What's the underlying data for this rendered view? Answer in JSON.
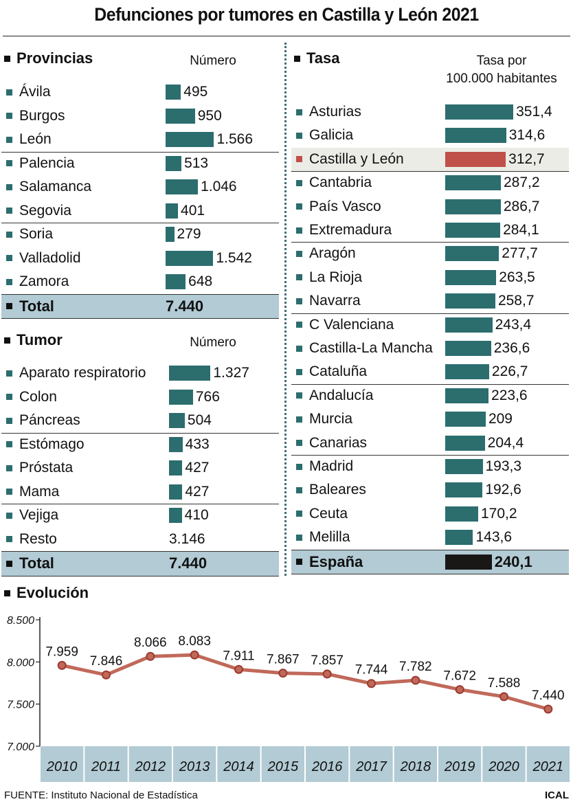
{
  "title": "Defunciones por tumores en Castilla y León 2021",
  "provincias": {
    "heading": "Provincias",
    "column": "Número",
    "rows": [
      {
        "label": "Ávila",
        "value": "495",
        "num": 495
      },
      {
        "label": "Burgos",
        "value": "950",
        "num": 950
      },
      {
        "label": "León",
        "value": "1.566",
        "num": 1566
      },
      {
        "label": "Palencia",
        "value": "513",
        "num": 513
      },
      {
        "label": "Salamanca",
        "value": "1.046",
        "num": 1046
      },
      {
        "label": "Segovia",
        "value": "401",
        "num": 401
      },
      {
        "label": "Soria",
        "value": "279",
        "num": 279
      },
      {
        "label": "Valladolid",
        "value": "1.542",
        "num": 1542
      },
      {
        "label": "Zamora",
        "value": "648",
        "num": 648
      }
    ],
    "total_label": "Total",
    "total_value": "7.440"
  },
  "tumor": {
    "heading": "Tumor",
    "column": "Número",
    "rows": [
      {
        "label": "Aparato respiratorio",
        "value": "1.327",
        "num": 1327
      },
      {
        "label": "Colon",
        "value": "766",
        "num": 766
      },
      {
        "label": "Páncreas",
        "value": "504",
        "num": 504
      },
      {
        "label": "Estómago",
        "value": "433",
        "num": 433
      },
      {
        "label": "Próstata",
        "value": "427",
        "num": 427
      },
      {
        "label": "Mama",
        "value": "427",
        "num": 427
      },
      {
        "label": "Vejiga",
        "value": "410",
        "num": 410
      },
      {
        "label": "Resto",
        "value": "3.146",
        "num": 3146
      }
    ],
    "total_label": "Total",
    "total_value": "7.440"
  },
  "tasa": {
    "heading": "Tasa",
    "column_line1": "Tasa por",
    "column_line2": "100.000 habitantes",
    "rows": [
      {
        "label": "Asturias",
        "value": "351,4",
        "num": 351.4
      },
      {
        "label": "Galicia",
        "value": "314,6",
        "num": 314.6
      },
      {
        "label": "Castilla y León",
        "value": "312,7",
        "num": 312.7
      },
      {
        "label": "Cantabria",
        "value": "287,2",
        "num": 287.2
      },
      {
        "label": "País Vasco",
        "value": "286,7",
        "num": 286.7
      },
      {
        "label": "Extremadura",
        "value": "284,1",
        "num": 284.1
      },
      {
        "label": "Aragón",
        "value": "277,7",
        "num": 277.7
      },
      {
        "label": "La Rioja",
        "value": "263,5",
        "num": 263.5
      },
      {
        "label": "Navarra",
        "value": "258,7",
        "num": 258.7
      },
      {
        "label": "C Valenciana",
        "value": "243,4",
        "num": 243.4
      },
      {
        "label": "Castilla-La Mancha",
        "value": "236,6",
        "num": 236.6
      },
      {
        "label": "Cataluña",
        "value": "226,7",
        "num": 226.7
      },
      {
        "label": "Andalucía",
        "value": "223,6",
        "num": 223.6
      },
      {
        "label": "Murcia",
        "value": "209",
        "num": 209
      },
      {
        "label": "Canarias",
        "value": "204,4",
        "num": 204.4
      },
      {
        "label": "Madrid",
        "value": "193,3",
        "num": 193.3
      },
      {
        "label": "Baleares",
        "value": "192,6",
        "num": 192.6
      },
      {
        "label": "Ceuta",
        "value": "170,2",
        "num": 170.2
      },
      {
        "label": "Melilla",
        "value": "143,6",
        "num": 143.6
      }
    ],
    "total_label": "España",
    "total_value": "240,1",
    "total_num": 240.1
  },
  "colors": {
    "bar": "#2c6d6e",
    "highlight_bar": "#c0504a",
    "spain_bar": "#1a1717",
    "line": "#c0695a",
    "marker": "#9c3a2e",
    "band": "#b2cbd4"
  },
  "evolucion": {
    "heading": "Evolución"
  },
  "chart_data": [
    {
      "type": "bar",
      "title": "Provincias",
      "categories": [
        "Ávila",
        "Burgos",
        "León",
        "Palencia",
        "Salamanca",
        "Segovia",
        "Soria",
        "Valladolid",
        "Zamora"
      ],
      "values": [
        495,
        950,
        1566,
        513,
        1046,
        401,
        279,
        1542,
        648
      ]
    },
    {
      "type": "bar",
      "title": "Tumor",
      "categories": [
        "Aparato respiratorio",
        "Colon",
        "Páncreas",
        "Estómago",
        "Próstata",
        "Mama",
        "Vejiga",
        "Resto"
      ],
      "values": [
        1327,
        766,
        504,
        433,
        427,
        427,
        410,
        3146
      ]
    },
    {
      "type": "bar",
      "title": "Tasa",
      "categories": [
        "Asturias",
        "Galicia",
        "Castilla y León",
        "Cantabria",
        "País Vasco",
        "Extremadura",
        "Aragón",
        "La Rioja",
        "Navarra",
        "C Valenciana",
        "Castilla-La Mancha",
        "Cataluña",
        "Andalucía",
        "Murcia",
        "Canarias",
        "Madrid",
        "Baleares",
        "Ceuta",
        "Melilla",
        "España"
      ],
      "values": [
        351.4,
        314.6,
        312.7,
        287.2,
        286.7,
        284.1,
        277.7,
        263.5,
        258.7,
        243.4,
        236.6,
        226.7,
        223.6,
        209,
        204.4,
        193.3,
        192.6,
        170.2,
        143.6,
        240.1
      ]
    },
    {
      "type": "line",
      "title": "Evolución",
      "x": [
        "2010",
        "2011",
        "2012",
        "2013",
        "2014",
        "2015",
        "2016",
        "2017",
        "2018",
        "2019",
        "2020",
        "2021"
      ],
      "values": [
        7959,
        7846,
        8066,
        8083,
        7911,
        7867,
        7857,
        7744,
        7782,
        7672,
        7588,
        7440
      ],
      "labels": [
        "7.959",
        "7.846",
        "8.066",
        "8.083",
        "7.911",
        "7.867",
        "7.857",
        "7.744",
        "7.782",
        "7.672",
        "7.588",
        "7.440"
      ],
      "ylim": [
        7000,
        8500
      ],
      "yticks": [
        7000,
        7500,
        8000,
        8500
      ],
      "ytick_labels": [
        "7.000",
        "7.500",
        "8.000",
        "8.500"
      ],
      "grid": false
    }
  ],
  "footer": {
    "source": "FUENTE: Instituto Nacional de Estadística",
    "brand": "ICAL"
  }
}
